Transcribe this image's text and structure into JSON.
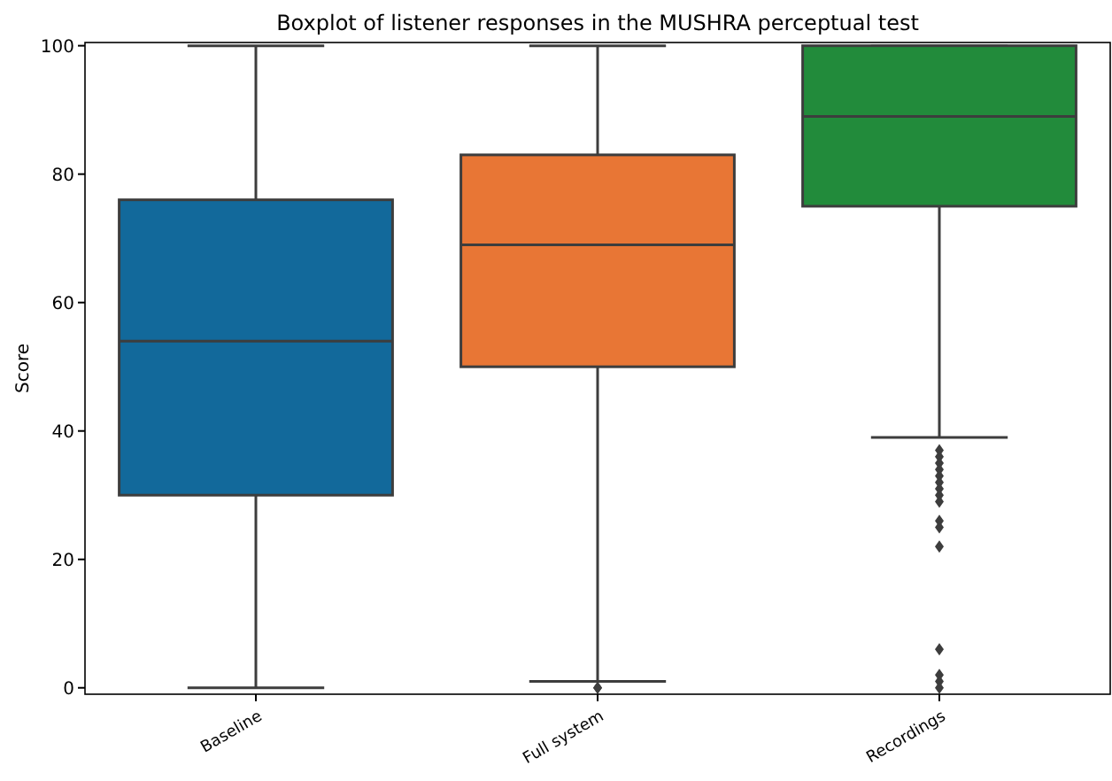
{
  "chart_data": {
    "type": "box",
    "title": "Boxplot of listener responses in the MUSHRA perceptual test",
    "ylabel": "Score",
    "categories": [
      "Baseline",
      "Full system",
      "Recordings"
    ],
    "colors": [
      "#12699b",
      "#e87635",
      "#228b3b"
    ],
    "boxes": [
      {
        "low": 0,
        "q1": 30,
        "median": 54,
        "q3": 76,
        "high": 100
      },
      {
        "low": 1,
        "q1": 50,
        "median": 69,
        "q3": 83,
        "high": 100,
        "outliers": [
          0,
          0
        ]
      },
      {
        "low": 39,
        "q1": 75,
        "median": 89,
        "q3": 100,
        "high": 100,
        "outliers": [
          37,
          36,
          35,
          34,
          33,
          32,
          31,
          30,
          29,
          26,
          25,
          22,
          6,
          2,
          1,
          0
        ]
      }
    ],
    "ylim": [
      -1,
      100.5
    ],
    "yticks": [
      0,
      20,
      40,
      60,
      80,
      100
    ],
    "grid": false
  }
}
